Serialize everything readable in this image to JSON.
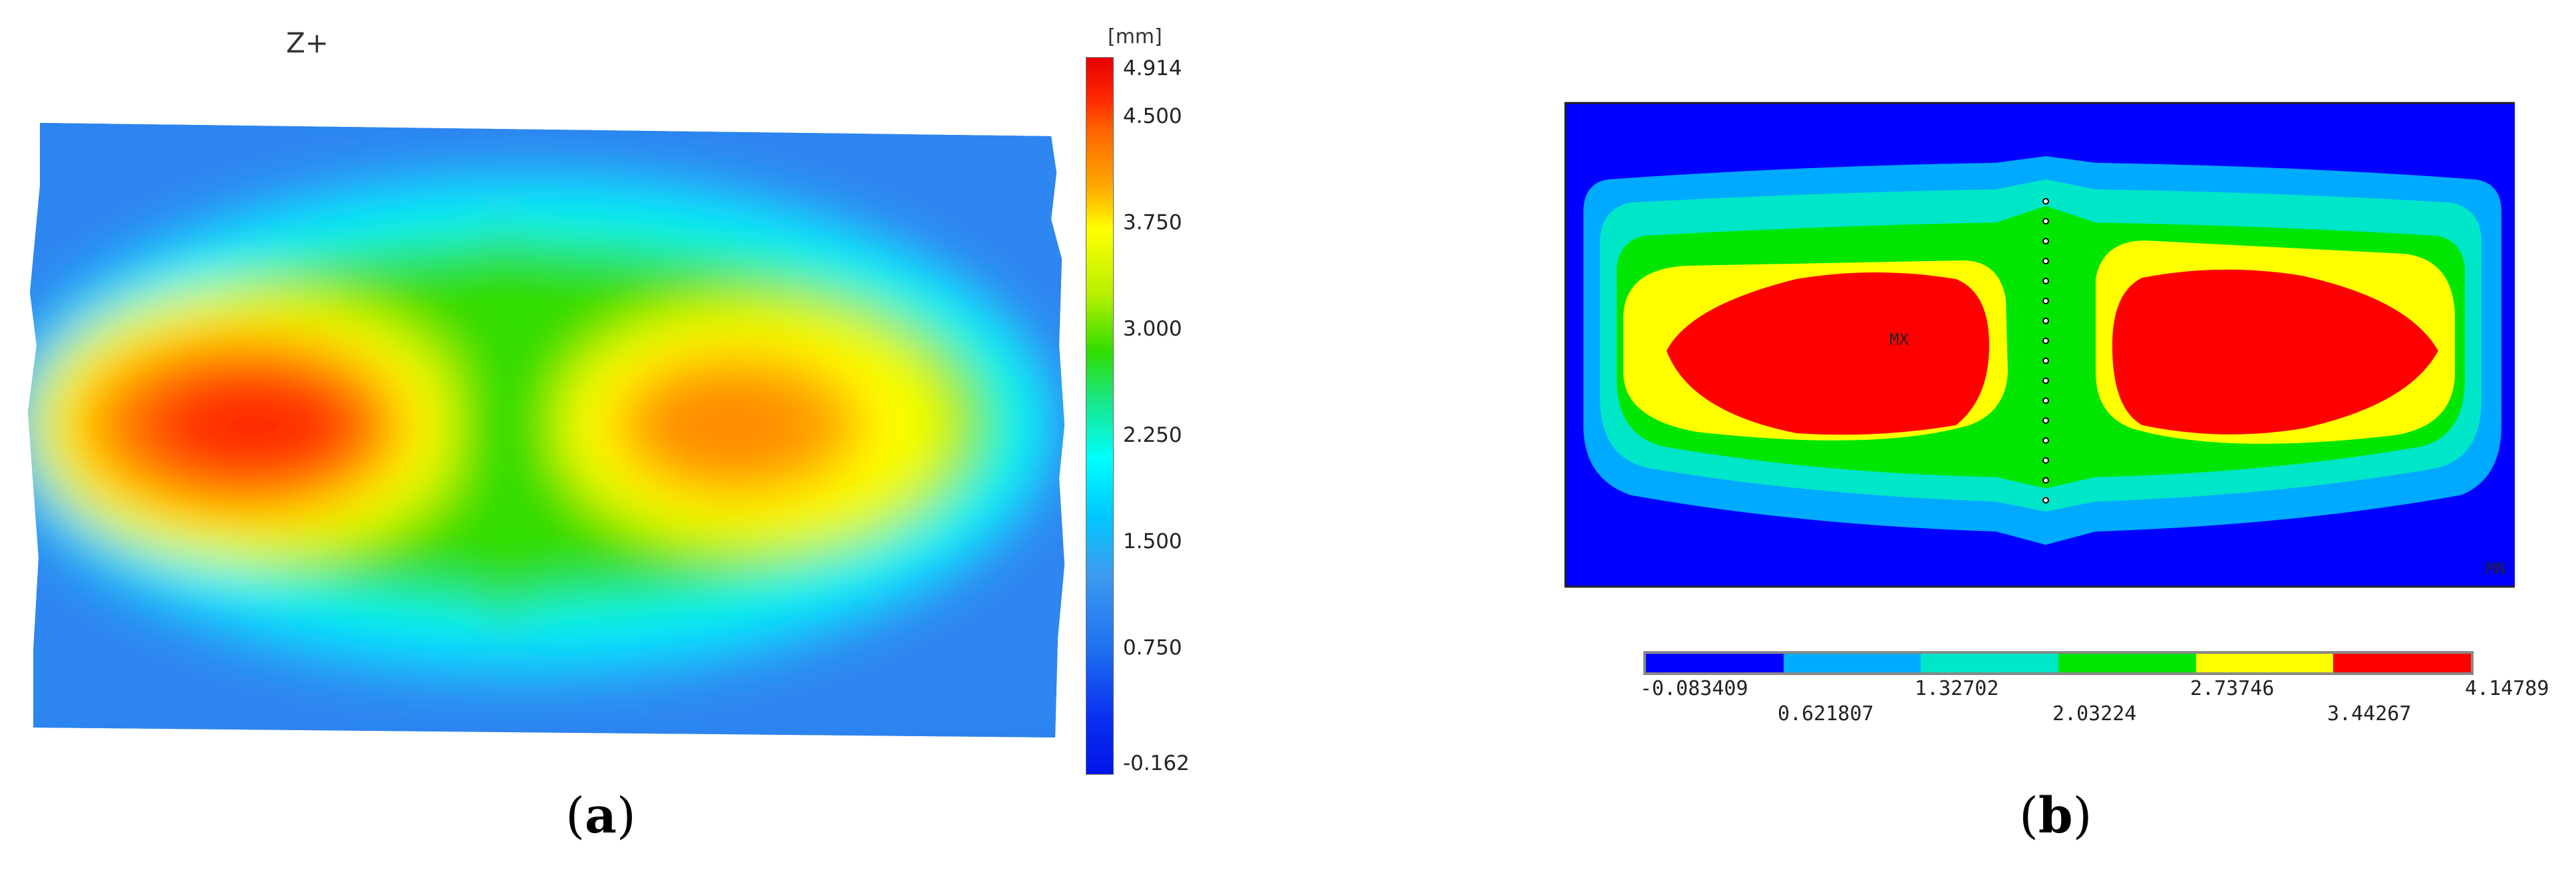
{
  "panel_a": {
    "view_label": "Z+",
    "unit": "[mm]",
    "colorbar_ticks": [
      "4.914",
      "4.500",
      "3.750",
      "3.000",
      "2.250",
      "1.500",
      "0.750",
      "-0.162"
    ],
    "caption": "a"
  },
  "panel_b": {
    "max_marker": "MX",
    "min_marker": "MN",
    "legend_colors": [
      "#0000ff",
      "#00aaff",
      "#00e6c8",
      "#00e600",
      "#ffff00",
      "#ff0000"
    ],
    "legend_ticks_top": [
      "-0.083409",
      "1.32702",
      "2.73746",
      "4.14789"
    ],
    "legend_ticks_bottom": [
      "0.621807",
      "2.03224",
      "3.44267"
    ],
    "caption": "b"
  }
}
